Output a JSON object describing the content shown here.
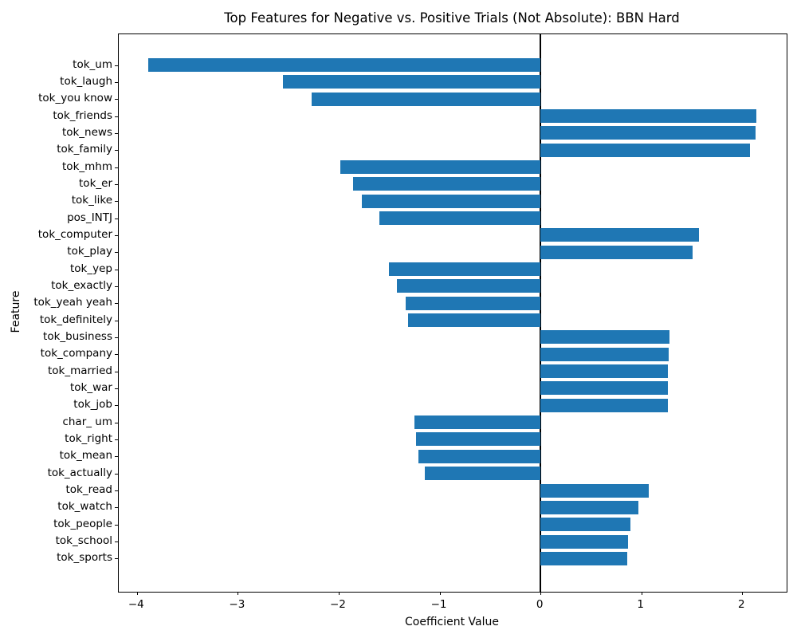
{
  "page": {
    "background": "#ffffff"
  },
  "chart_data": {
    "type": "bar",
    "orientation": "horizontal",
    "title": "Top Features for Negative vs. Positive Trials (Not Absolute): BBN Hard",
    "xlabel": "Coefficient Value",
    "ylabel": "Feature",
    "bar_color": "#1f77b4",
    "axis_color": "#000000",
    "grid": false,
    "legend": null,
    "zero_line": true,
    "xlim": [
      -4.18,
      2.44
    ],
    "x_ticks": [
      -4,
      -3,
      -2,
      -1,
      0,
      1,
      2
    ],
    "x_tick_labels": [
      "−4",
      "−3",
      "−2",
      "−1",
      "0",
      "1",
      "2"
    ],
    "categories": [
      "tok_um",
      "tok_laugh",
      "tok_you know",
      "tok_friends",
      "tok_news",
      "tok_family",
      "tok_mhm",
      "tok_er",
      "tok_like",
      "pos_INTJ",
      "tok_computer",
      "tok_play",
      "tok_yep",
      "tok_exactly",
      "tok_yeah yeah",
      "tok_definitely",
      "tok_business",
      "tok_company",
      "tok_married",
      "tok_war",
      "tok_job",
      "char_ um",
      "tok_right",
      "tok_mean",
      "tok_actually",
      "tok_read",
      "tok_watch",
      "tok_people",
      "tok_school",
      "tok_sports"
    ],
    "values": [
      -3.89,
      -2.55,
      -2.27,
      2.14,
      2.13,
      2.08,
      -1.98,
      -1.86,
      -1.77,
      -1.6,
      1.57,
      1.51,
      -1.5,
      -1.42,
      -1.34,
      -1.31,
      1.28,
      1.27,
      1.26,
      1.26,
      1.26,
      -1.25,
      -1.23,
      -1.21,
      -1.15,
      1.07,
      0.97,
      0.89,
      0.87,
      0.86
    ]
  }
}
